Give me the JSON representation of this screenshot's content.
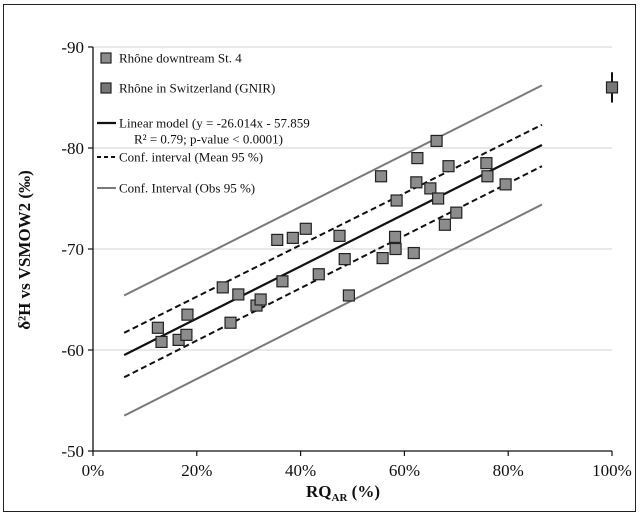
{
  "chart_data": {
    "type": "scatter",
    "title": "",
    "xlabel": "RQ",
    "xlabel_sub": "AR",
    "xlabel_unit": " (%)",
    "ylabel": "δ²H vs VSMOW2 (‰)",
    "xlim": [
      0,
      100
    ],
    "ylim": [
      -50,
      -90
    ],
    "x_ticks": [
      "0%",
      "20%",
      "40%",
      "60%",
      "80%",
      "100%"
    ],
    "y_ticks": [
      "-90",
      "-80",
      "-70",
      "-60",
      "-50"
    ],
    "grid": "horizontal",
    "legend_position": "top-left",
    "colors": {
      "marker_fill": "#8c8c8c",
      "marker_edge": "#222222",
      "model": "#111111",
      "conf_mean": "#111111",
      "conf_obs": "#7a7a7a",
      "grid": "#d0d0d0"
    },
    "legend": [
      {
        "kind": "square-gray",
        "label": "Rhône downtream St. 4"
      },
      {
        "kind": "square-dark",
        "label": "Rhône in Switzerland (GNIR)"
      },
      {
        "kind": "line-solid",
        "label": "Linear model (y = -26.014x - 57.859"
      },
      {
        "kind": "none",
        "label": "R² = 0.79; p-value < 0.0001)"
      },
      {
        "kind": "line-dashed",
        "label": "Conf. interval (Mean 95 %)"
      },
      {
        "kind": "line-gray",
        "label": "Conf. Interval (Obs 95 %)"
      }
    ],
    "series": [
      {
        "name": "Rhône downtream St. 4",
        "points": [
          {
            "x": 12.5,
            "y": -62.2
          },
          {
            "x": 13.2,
            "y": -60.8
          },
          {
            "x": 16.5,
            "y": -61.0
          },
          {
            "x": 18.0,
            "y": -61.5
          },
          {
            "x": 18.2,
            "y": -63.5
          },
          {
            "x": 25.0,
            "y": -66.2
          },
          {
            "x": 26.5,
            "y": -62.7
          },
          {
            "x": 28.0,
            "y": -65.5
          },
          {
            "x": 31.5,
            "y": -64.4
          },
          {
            "x": 32.3,
            "y": -65.0
          },
          {
            "x": 35.5,
            "y": -70.9
          },
          {
            "x": 36.5,
            "y": -66.8
          },
          {
            "x": 38.5,
            "y": -71.1
          },
          {
            "x": 41.0,
            "y": -72.0
          },
          {
            "x": 43.5,
            "y": -67.5
          },
          {
            "x": 47.5,
            "y": -71.3
          },
          {
            "x": 48.5,
            "y": -69.0
          },
          {
            "x": 49.3,
            "y": -65.4
          },
          {
            "x": 55.5,
            "y": -77.2
          },
          {
            "x": 55.8,
            "y": -69.1
          },
          {
            "x": 58.2,
            "y": -71.2
          },
          {
            "x": 58.3,
            "y": -70.0
          },
          {
            "x": 58.5,
            "y": -74.8
          },
          {
            "x": 61.8,
            "y": -69.6
          },
          {
            "x": 62.3,
            "y": -76.6
          },
          {
            "x": 62.5,
            "y": -79.0
          },
          {
            "x": 65.0,
            "y": -76.0
          },
          {
            "x": 66.2,
            "y": -80.7
          },
          {
            "x": 66.5,
            "y": -75.0
          },
          {
            "x": 67.8,
            "y": -72.4
          },
          {
            "x": 68.5,
            "y": -78.2
          },
          {
            "x": 70.0,
            "y": -73.6
          },
          {
            "x": 75.8,
            "y": -78.5
          },
          {
            "x": 76.0,
            "y": -77.2
          },
          {
            "x": 79.5,
            "y": -76.4
          }
        ]
      },
      {
        "name": "Rhône in Switzerland (GNIR)",
        "points": [
          {
            "x": 100.0,
            "y": -86.0,
            "err": 1.5
          }
        ]
      }
    ],
    "lines": [
      {
        "name": "Linear model",
        "style": "solid",
        "points": [
          {
            "x": 6,
            "y": -59.5
          },
          {
            "x": 86.5,
            "y": -80.3
          }
        ]
      },
      {
        "name": "Conf. interval (Mean 95 %) upper",
        "style": "dashed",
        "points": [
          {
            "x": 6,
            "y": -61.7
          },
          {
            "x": 86.5,
            "y": -82.3
          }
        ]
      },
      {
        "name": "Conf. interval (Mean 95 %) lower",
        "style": "dashed",
        "points": [
          {
            "x": 6,
            "y": -57.3
          },
          {
            "x": 86.5,
            "y": -78.2
          }
        ]
      },
      {
        "name": "Conf. Interval (Obs 95 %) upper",
        "style": "gray",
        "points": [
          {
            "x": 6,
            "y": -65.4
          },
          {
            "x": 86.5,
            "y": -86.2
          }
        ]
      },
      {
        "name": "Conf. Interval (Obs 95 %) lower",
        "style": "gray",
        "points": [
          {
            "x": 6,
            "y": -53.5
          },
          {
            "x": 86.5,
            "y": -74.4
          }
        ]
      }
    ]
  }
}
